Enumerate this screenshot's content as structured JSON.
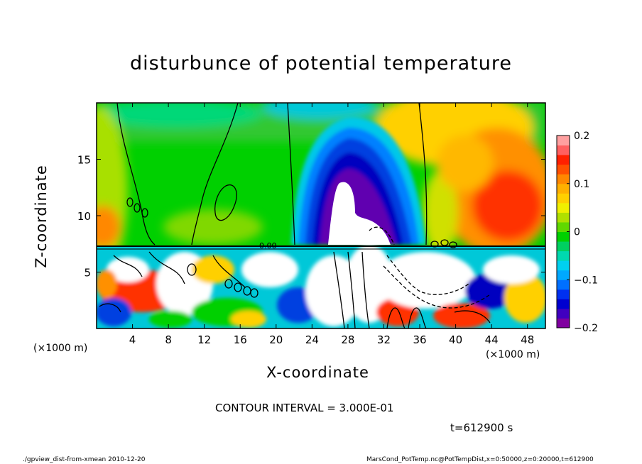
{
  "title": "disturbunce of potential temperature",
  "chart_data": {
    "type": "heatmap",
    "title": "disturbunce of potential temperature",
    "xlabel": "X-coordinate",
    "ylabel": "Z-coordinate",
    "x_unit_label": "(×1000 m)",
    "xlim": [
      0,
      50
    ],
    "ylim": [
      0,
      20
    ],
    "x_ticks": [
      4,
      8,
      12,
      16,
      20,
      24,
      28,
      32,
      36,
      40,
      44,
      48
    ],
    "y_ticks": [
      5,
      10,
      15
    ],
    "colorbar": {
      "range": [
        -0.2,
        0.2
      ],
      "ticks": [
        "0.2",
        "0.1",
        "0",
        "−0.1",
        "−0.2"
      ],
      "tick_values": [
        0.2,
        0.1,
        0,
        -0.1,
        -0.2
      ]
    },
    "contour_interval_text": "CONTOUR INTERVAL = 3.000E-01",
    "contour_label": "0.00",
    "time_text": "t=612900 s"
  },
  "footer": {
    "left": "./gpview_dist-from-xmean  2010-12-20",
    "right": "MarsCond_PotTemp.nc@PotTempDist,x=0:50000,z=0:20000,t=612900"
  }
}
